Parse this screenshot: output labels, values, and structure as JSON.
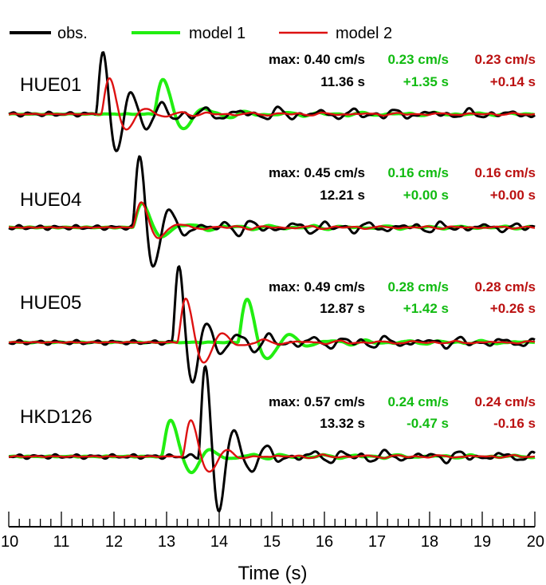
{
  "colors": {
    "obs": "#000000",
    "model1": "#22ee11",
    "model2": "#dd1111",
    "model1_text": "#11bb11",
    "model2_text": "#bb1111"
  },
  "legend": {
    "obs": "obs.",
    "model1": "model 1",
    "model2": "model 2"
  },
  "chart_data": {
    "type": "line",
    "xlabel": "Time (s)",
    "xlim": [
      10,
      20
    ],
    "xticks": [
      "10",
      "11",
      "12",
      "13",
      "14",
      "15",
      "16",
      "17",
      "18",
      "19",
      "20"
    ],
    "minor_tick_step": 0.2,
    "series_names": [
      "obs.",
      "model 1",
      "model 2"
    ],
    "stations": [
      {
        "name": "HUE01",
        "obs": {
          "max": "max: 0.40 cm/s",
          "time": "11.36 s",
          "pga": 0.4,
          "onset": 11.65
        },
        "model1": {
          "max": "0.23 cm/s",
          "shift": "+1.35 s",
          "pga": 0.23,
          "onset": 12.75
        },
        "model2": {
          "max": "0.23 cm/s",
          "shift": "+0.14 s",
          "pga": 0.23,
          "onset": 11.75
        }
      },
      {
        "name": "HUE04",
        "obs": {
          "max": "max: 0.45 cm/s",
          "time": "12.21 s",
          "pga": 0.45,
          "onset": 12.35
        },
        "model1": {
          "max": "0.16 cm/s",
          "shift": "+0.00 s",
          "pga": 0.16,
          "onset": 12.35
        },
        "model2": {
          "max": "0.16 cm/s",
          "shift": "+0.00 s",
          "pga": 0.16,
          "onset": 12.35
        }
      },
      {
        "name": "HUE05",
        "obs": {
          "max": "max: 0.49 cm/s",
          "time": "12.87 s",
          "pga": 0.49,
          "onset": 13.1
        },
        "model1": {
          "max": "0.28 cm/s",
          "shift": "+1.42 s",
          "pga": 0.28,
          "onset": 14.35
        },
        "model2": {
          "max": "0.28 cm/s",
          "shift": "+0.26 s",
          "pga": 0.28,
          "onset": 13.2
        }
      },
      {
        "name": "HKD126",
        "obs": {
          "max": "max: 0.57 cm/s",
          "time": "13.32 s",
          "pga": 0.57,
          "onset": 13.6
        },
        "model1": {
          "max": "0.24 cm/s",
          "shift": "-0.47 s",
          "pga": 0.24,
          "onset": 12.9
        },
        "model2": {
          "max": "0.24 cm/s",
          "shift": "-0.16 s",
          "pga": 0.24,
          "onset": 13.3
        }
      }
    ]
  }
}
